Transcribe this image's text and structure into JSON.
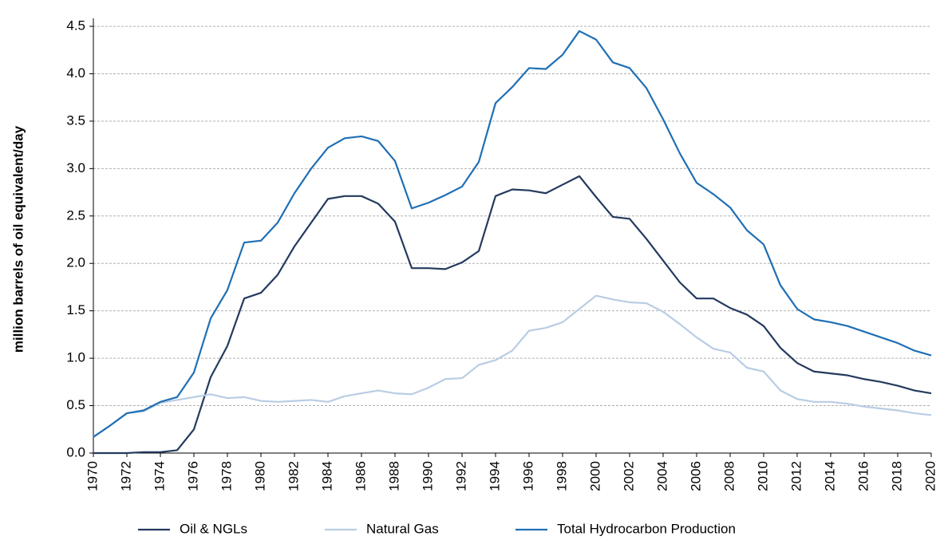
{
  "chart_data": {
    "type": "line",
    "ylabel": "million barrels of oil equivalent/day",
    "x": [
      1970,
      1971,
      1972,
      1973,
      1974,
      1975,
      1976,
      1977,
      1978,
      1979,
      1980,
      1981,
      1982,
      1983,
      1984,
      1985,
      1986,
      1987,
      1988,
      1989,
      1990,
      1991,
      1992,
      1993,
      1994,
      1995,
      1996,
      1997,
      1998,
      1999,
      2000,
      2001,
      2002,
      2003,
      2004,
      2005,
      2006,
      2007,
      2008,
      2009,
      2010,
      2011,
      2012,
      2013,
      2014,
      2015,
      2016,
      2017,
      2018,
      2019,
      2020
    ],
    "series": [
      {
        "name": "Oil & NGLs",
        "color": "#243a5e",
        "values": [
          0.0,
          0.0,
          0.0,
          0.01,
          0.01,
          0.03,
          0.25,
          0.8,
          1.13,
          1.63,
          1.69,
          1.88,
          2.18,
          2.43,
          2.68,
          2.71,
          2.71,
          2.63,
          2.44,
          1.95,
          1.95,
          1.94,
          2.01,
          2.13,
          2.71,
          2.78,
          2.77,
          2.74,
          2.83,
          2.92,
          2.7,
          2.49,
          2.47,
          2.26,
          2.03,
          1.8,
          1.63,
          1.63,
          1.53,
          1.46,
          1.34,
          1.11,
          0.95,
          0.86,
          0.84,
          0.82,
          0.78,
          0.75,
          0.71,
          0.66,
          0.63
        ]
      },
      {
        "name": "Natural Gas",
        "color": "#b9cde4",
        "values": [
          0.17,
          0.29,
          0.42,
          0.44,
          0.53,
          0.56,
          0.59,
          0.62,
          0.58,
          0.59,
          0.55,
          0.54,
          0.55,
          0.56,
          0.54,
          0.6,
          0.63,
          0.66,
          0.63,
          0.62,
          0.69,
          0.78,
          0.79,
          0.93,
          0.98,
          1.08,
          1.29,
          1.32,
          1.38,
          1.52,
          1.66,
          1.62,
          1.59,
          1.58,
          1.49,
          1.36,
          1.22,
          1.1,
          1.06,
          0.9,
          0.86,
          0.66,
          0.57,
          0.54,
          0.54,
          0.52,
          0.49,
          0.47,
          0.45,
          0.42,
          0.4
        ]
      },
      {
        "name": "Total Hydrocarbon Production",
        "color": "#1f6fb5",
        "values": [
          0.17,
          0.29,
          0.42,
          0.45,
          0.54,
          0.59,
          0.85,
          1.42,
          1.72,
          2.22,
          2.24,
          2.43,
          2.74,
          3.0,
          3.22,
          3.32,
          3.34,
          3.29,
          3.08,
          2.58,
          2.64,
          2.72,
          2.81,
          3.07,
          3.69,
          3.86,
          4.06,
          4.05,
          4.2,
          4.45,
          4.36,
          4.12,
          4.06,
          3.85,
          3.52,
          3.16,
          2.85,
          2.73,
          2.59,
          2.35,
          2.2,
          1.77,
          1.52,
          1.41,
          1.38,
          1.34,
          1.28,
          1.22,
          1.16,
          1.08,
          1.03
        ]
      }
    ],
    "xlim": [
      1970,
      2020
    ],
    "xticks": [
      1970,
      1972,
      1974,
      1976,
      1978,
      1980,
      1982,
      1984,
      1986,
      1988,
      1990,
      1992,
      1994,
      1996,
      1998,
      2000,
      2002,
      2004,
      2006,
      2008,
      2010,
      2012,
      2014,
      2016,
      2018,
      2020
    ],
    "ylim": [
      0,
      4.5
    ],
    "yticks": [
      {
        "value": 0,
        "label": "0.0"
      },
      {
        "value": 0.5,
        "label": "0.5"
      },
      {
        "value": 1,
        "label": "1.0"
      },
      {
        "value": 1.5,
        "label": "1.5"
      },
      {
        "value": 2,
        "label": "2.0"
      },
      {
        "value": 2.5,
        "label": "2.5"
      },
      {
        "value": 3,
        "label": "3.0"
      },
      {
        "value": 3.5,
        "label": "3.5"
      },
      {
        "value": 4,
        "label": "4.0"
      },
      {
        "value": 4.5,
        "label": "4.5"
      }
    ],
    "grid": true,
    "legend": "bottom"
  }
}
